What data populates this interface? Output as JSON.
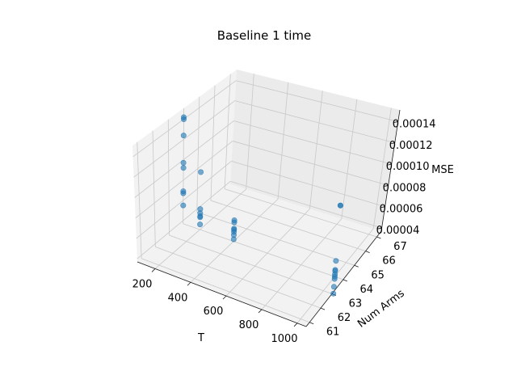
{
  "chart_data": {
    "type": "scatter",
    "projection": "3d",
    "title": "Baseline 1 time",
    "xlabel": "T",
    "ylabel": "Num Arms",
    "zlabel": "MSE",
    "xlim": [
      100,
      1050
    ],
    "ylim": [
      60.7,
      67.4
    ],
    "zlim": [
      3.7e-05,
      0.000151
    ],
    "xticks": [
      "200",
      "400",
      "600",
      "800",
      "1000"
    ],
    "yticks": [
      "61",
      "62",
      "63",
      "64",
      "65",
      "66",
      "67"
    ],
    "zticks": [
      "0.00004",
      "0.00006",
      "0.00008",
      "0.00010",
      "0.00012",
      "0.00014"
    ],
    "grid": true,
    "series": [
      {
        "color": "#1f77b4",
        "points": [
          {
            "x": 100,
            "y": 64,
            "z": 0.000142
          },
          {
            "x": 100,
            "y": 64,
            "z": 0.00014
          },
          {
            "x": 100,
            "y": 64,
            "z": 0.000124
          },
          {
            "x": 100,
            "y": 64,
            "z": 9.7e-05
          },
          {
            "x": 100,
            "y": 64,
            "z": 9.2e-05
          },
          {
            "x": 100,
            "y": 64,
            "z": 6.9e-05
          },
          {
            "x": 100,
            "y": 64,
            "z": 6.7e-05
          },
          {
            "x": 100,
            "y": 64,
            "z": 5.5e-05
          },
          {
            "x": 200,
            "y": 64,
            "z": 9.3e-05
          },
          {
            "x": 200,
            "y": 64,
            "z": 5.7e-05
          },
          {
            "x": 200,
            "y": 64,
            "z": 5.3e-05
          },
          {
            "x": 200,
            "y": 64,
            "z": 5e-05
          },
          {
            "x": 200,
            "y": 64,
            "z": 4.9e-05
          },
          {
            "x": 200,
            "y": 64,
            "z": 4.2e-05
          },
          {
            "x": 400,
            "y": 64,
            "z": 5.7e-05
          },
          {
            "x": 400,
            "y": 64,
            "z": 5.5e-05
          },
          {
            "x": 400,
            "y": 64,
            "z": 4.9e-05
          },
          {
            "x": 400,
            "y": 64,
            "z": 4.8e-05
          },
          {
            "x": 400,
            "y": 64,
            "z": 4.6e-05
          },
          {
            "x": 400,
            "y": 64,
            "z": 4.3e-05
          },
          {
            "x": 400,
            "y": 64,
            "z": 3.9e-05
          },
          {
            "x": 1000,
            "y": 64,
            "z": 0.0001
          },
          {
            "x": 1000,
            "y": 64,
            "z": 0.0001
          },
          {
            "x": 1000,
            "y": 64,
            "z": 5.1e-05
          },
          {
            "x": 1000,
            "y": 64,
            "z": 4.3e-05
          },
          {
            "x": 1000,
            "y": 64,
            "z": 4.2e-05
          },
          {
            "x": 1000,
            "y": 64,
            "z": 3.9e-05
          },
          {
            "x": 1000,
            "y": 64,
            "z": 3.7e-05
          },
          {
            "x": 1000,
            "y": 64,
            "z": 3.5e-05
          },
          {
            "x": 1000,
            "y": 64,
            "z": 2.8e-05
          },
          {
            "x": 1000,
            "y": 64,
            "z": 2.2e-05
          }
        ]
      }
    ]
  }
}
